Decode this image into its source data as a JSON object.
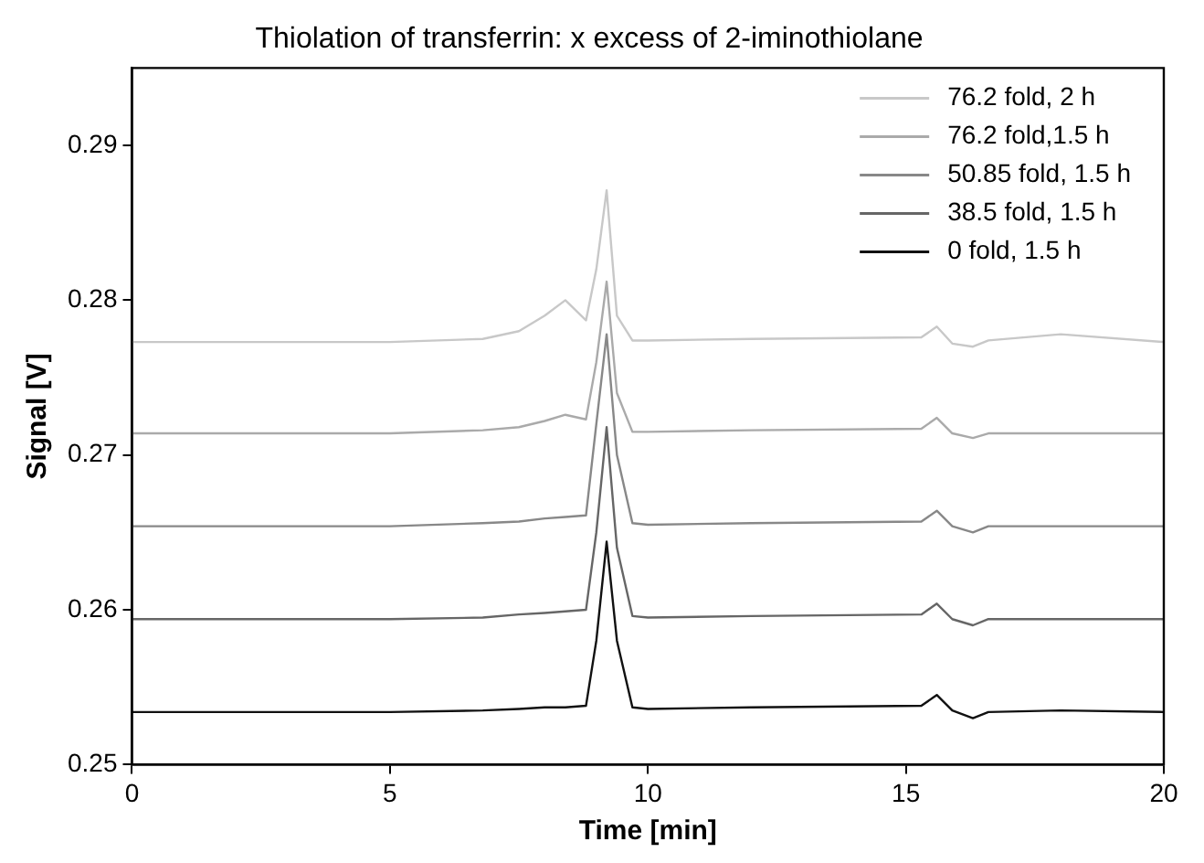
{
  "chart_data": {
    "type": "line",
    "title": "Thiolation of transferrin: x excess of 2-iminothiolane",
    "xlabel": "Time [min]",
    "ylabel": "Signal [V]",
    "x": [
      0,
      5,
      6.8,
      7.5,
      8.0,
      8.4,
      8.8,
      9.0,
      9.2,
      9.4,
      9.7,
      10,
      12,
      15.3,
      15.6,
      15.9,
      16.3,
      16.6,
      18,
      20
    ],
    "series": [
      {
        "name": "76.2 fold, 2 h",
        "color": "#c8c8c8",
        "values": [
          0.2773,
          0.2773,
          0.2775,
          0.278,
          0.279,
          0.28,
          0.2787,
          0.282,
          0.2871,
          0.279,
          0.2774,
          0.2774,
          0.2775,
          0.2776,
          0.2783,
          0.2772,
          0.277,
          0.2774,
          0.2778,
          0.2773
        ]
      },
      {
        "name": "76.2 fold,1.5 h",
        "color": "#aaaaaa",
        "values": [
          0.2714,
          0.2714,
          0.2716,
          0.2718,
          0.2722,
          0.2726,
          0.2723,
          0.276,
          0.2812,
          0.274,
          0.2715,
          0.2715,
          0.2716,
          0.2717,
          0.2724,
          0.2714,
          0.2711,
          0.2714,
          0.2714,
          0.2714
        ]
      },
      {
        "name": "50.85 fold, 1.5 h",
        "color": "#888888",
        "values": [
          0.2654,
          0.2654,
          0.2656,
          0.2657,
          0.2659,
          0.266,
          0.2661,
          0.272,
          0.2778,
          0.27,
          0.2656,
          0.2655,
          0.2656,
          0.2657,
          0.2664,
          0.2654,
          0.265,
          0.2654,
          0.2654,
          0.2654
        ]
      },
      {
        "name": "38.5 fold, 1.5 h",
        "color": "#666666",
        "values": [
          0.2594,
          0.2594,
          0.2595,
          0.2597,
          0.2598,
          0.2599,
          0.26,
          0.265,
          0.2718,
          0.264,
          0.2596,
          0.2595,
          0.2596,
          0.2597,
          0.2604,
          0.2594,
          0.259,
          0.2594,
          0.2594,
          0.2594
        ]
      },
      {
        "name": "0 fold, 1.5 h",
        "color": "#111111",
        "values": [
          0.2534,
          0.2534,
          0.2535,
          0.2536,
          0.2537,
          0.2537,
          0.2538,
          0.258,
          0.2644,
          0.258,
          0.2537,
          0.2536,
          0.2537,
          0.2538,
          0.2545,
          0.2535,
          0.253,
          0.2534,
          0.2535,
          0.2534
        ]
      }
    ],
    "xlim": [
      0,
      20
    ],
    "xticks": [
      0,
      5,
      10,
      15,
      20
    ],
    "ylim": [
      0.25,
      0.295
    ],
    "yticks": [
      0.25,
      0.26,
      0.27,
      0.28,
      0.29
    ],
    "grid": false,
    "legend": "top right",
    "marker": "none",
    "line_style": "solid"
  }
}
